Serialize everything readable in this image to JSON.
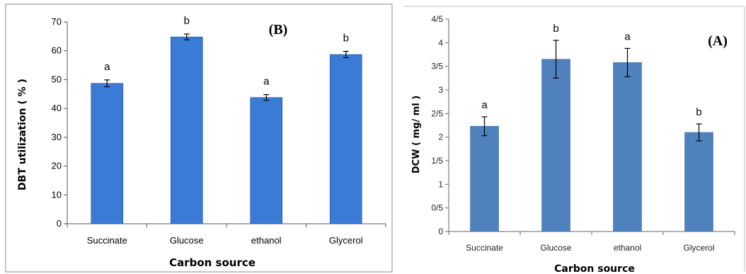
{
  "chart_data": [
    {
      "type": "bar",
      "panel_label": "(B)",
      "xlabel": "Carbon source",
      "ylabel": "DBT utilization ( % )",
      "categories": [
        "Succinate",
        "Glucose",
        "ethanol",
        "Glycerol"
      ],
      "values": [
        48.7,
        64.8,
        43.8,
        58.7
      ],
      "errors": [
        1.2,
        1.0,
        1.0,
        1.1
      ],
      "significance": [
        "a",
        "b",
        "a",
        "b"
      ],
      "ylim": [
        0,
        70
      ],
      "yticks": [
        0,
        10,
        20,
        30,
        40,
        50,
        60,
        70
      ],
      "ytick_labels": [
        "0",
        "10",
        "20",
        "30",
        "40",
        "50",
        "60",
        "70"
      ],
      "bar_color": "#3a7bd5",
      "grid": false,
      "legend": "none"
    },
    {
      "type": "bar",
      "panel_label": "(A)",
      "xlabel": "Carbon source",
      "ylabel": "DCW ( mg/ ml )",
      "categories": [
        "Succinate",
        "Glucose",
        "ethanol",
        "Glycerol"
      ],
      "values": [
        2.23,
        3.65,
        3.58,
        2.1
      ],
      "errors": [
        0.2,
        0.4,
        0.3,
        0.18
      ],
      "significance": [
        "a",
        "b",
        "a",
        "b"
      ],
      "ylim": [
        0,
        4.5
      ],
      "yticks": [
        0,
        0.5,
        1,
        1.5,
        2,
        2.5,
        3,
        3.5,
        4,
        4.5
      ],
      "ytick_labels": [
        "0",
        "0/5",
        "1",
        "1/5",
        "2",
        "2/5",
        "3",
        "3/5",
        "4",
        "4/5"
      ],
      "bar_color": "#4f81bd",
      "grid": false,
      "legend": "none"
    }
  ]
}
